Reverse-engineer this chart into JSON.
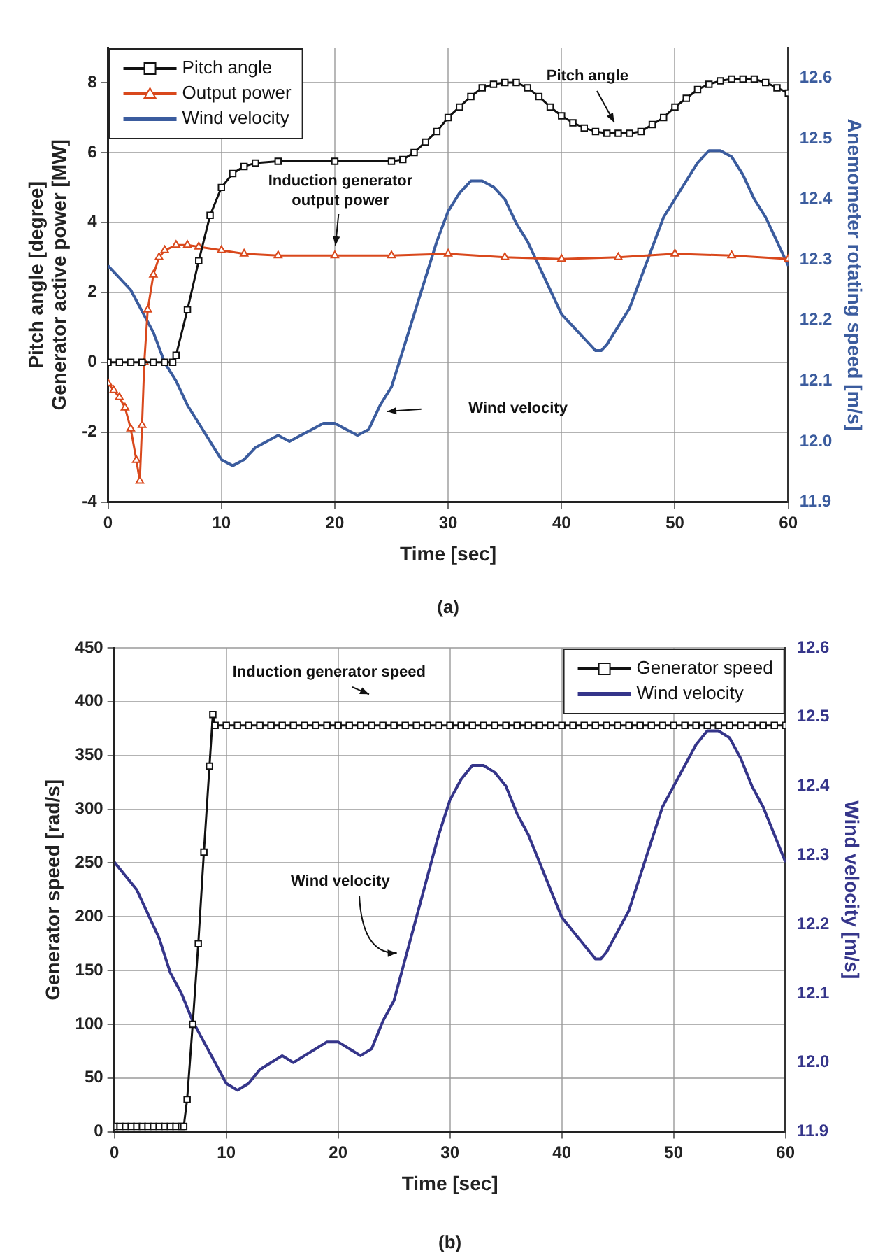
{
  "chart_data": [
    {
      "type": "line",
      "xlabel": "Time [sec]",
      "ylabel": "Pitch angle [degree]\nGenerator active power [MW]",
      "y2label": "Anemometer rotating speed [m/s]",
      "xlim": [
        0,
        60
      ],
      "xticks": [
        0,
        10,
        20,
        30,
        40,
        50,
        60
      ],
      "ylim": [
        -4,
        9
      ],
      "yticks": [
        -4,
        -2,
        0,
        2,
        4,
        6,
        8
      ],
      "y2lim": [
        11.9,
        12.65
      ],
      "y2ticks": [
        11.9,
        {
          "value": 12,
          "label": "12.0"
        },
        12.1,
        12.2,
        12.3,
        12.4,
        12.5,
        12.6
      ],
      "grid": true,
      "legend": "top left",
      "series": [
        {
          "name": "Pitch angle",
          "color": "#111111",
          "marker": "square",
          "x": [
            0,
            1,
            2,
            3,
            4,
            5,
            5.7,
            6,
            7,
            8,
            9,
            10,
            11,
            12,
            13,
            15,
            20,
            25,
            26,
            27,
            28,
            29,
            30,
            31,
            32,
            33,
            34,
            35,
            36,
            37,
            38,
            39,
            40,
            41,
            42,
            43,
            44,
            45,
            46,
            47,
            48,
            49,
            50,
            51,
            52,
            53,
            54,
            55,
            56,
            57,
            58,
            59,
            60
          ],
          "values": [
            0,
            0,
            0,
            0,
            0,
            0,
            0,
            0.2,
            1.5,
            2.9,
            4.2,
            5.0,
            5.4,
            5.6,
            5.7,
            5.75,
            5.75,
            5.75,
            5.8,
            6.0,
            6.3,
            6.6,
            7.0,
            7.3,
            7.6,
            7.85,
            7.95,
            8.0,
            8.0,
            7.85,
            7.6,
            7.3,
            7.05,
            6.85,
            6.7,
            6.6,
            6.55,
            6.55,
            6.55,
            6.6,
            6.8,
            7.0,
            7.3,
            7.55,
            7.8,
            7.95,
            8.05,
            8.1,
            8.1,
            8.1,
            8.0,
            7.85,
            7.7
          ]
        },
        {
          "name": "Output power",
          "color": "#d9481c",
          "marker": "triangle",
          "x": [
            0,
            0.5,
            1,
            1.5,
            2,
            2.5,
            2.8,
            3,
            3.2,
            3.5,
            4,
            4.5,
            5,
            6,
            7,
            8,
            10,
            12,
            15,
            20,
            25,
            30,
            35,
            40,
            45,
            50,
            55,
            60
          ],
          "values": [
            -0.6,
            -0.8,
            -1,
            -1.3,
            -1.9,
            -2.8,
            -3.4,
            -1.8,
            0,
            1.5,
            2.5,
            3.0,
            3.2,
            3.35,
            3.35,
            3.3,
            3.2,
            3.1,
            3.05,
            3.05,
            3.05,
            3.1,
            3.0,
            2.95,
            3.0,
            3.1,
            3.05,
            2.95
          ]
        },
        {
          "name": "Wind velocity",
          "color": "#3b5c9e",
          "marker": "none",
          "axis": "y2",
          "x": [
            0,
            2,
            4,
            5,
            6,
            7,
            8,
            9,
            10,
            11,
            12,
            13,
            14,
            15,
            16,
            17,
            18,
            19,
            20,
            21,
            22,
            23,
            24,
            25,
            26,
            27,
            28,
            29,
            30,
            31,
            32,
            33,
            34,
            35,
            36,
            37,
            38,
            39,
            40,
            41,
            42,
            43,
            43.5,
            44,
            45,
            46,
            47,
            48,
            49,
            50,
            51,
            52,
            53,
            54,
            55,
            56,
            57,
            58,
            59,
            60
          ],
          "values": [
            12.29,
            12.25,
            12.18,
            12.13,
            12.1,
            12.06,
            12.03,
            12.0,
            11.97,
            11.96,
            11.97,
            11.99,
            12.0,
            12.01,
            12.0,
            12.01,
            12.02,
            12.03,
            12.03,
            12.02,
            12.01,
            12.02,
            12.06,
            12.09,
            12.15,
            12.21,
            12.27,
            12.33,
            12.38,
            12.41,
            12.43,
            12.43,
            12.42,
            12.4,
            12.36,
            12.33,
            12.29,
            12.25,
            12.21,
            12.19,
            12.17,
            12.15,
            12.15,
            12.16,
            12.19,
            12.22,
            12.27,
            12.32,
            12.37,
            12.4,
            12.43,
            12.46,
            12.48,
            12.48,
            12.47,
            12.44,
            12.4,
            12.37,
            12.33,
            12.29
          ]
        }
      ],
      "annotations": [
        {
          "text": "Pitch angle",
          "x": 45,
          "y": 6.65
        },
        {
          "text": "Induction generator output power",
          "x": 20,
          "y": 3.1
        },
        "Wind velocity",
        "(a)"
      ]
    },
    {
      "type": "line",
      "xlabel": "Time [sec]",
      "ylabel": "Generator speed [rad/s]",
      "y2label": "Wind velocity [m/s]",
      "xlim": [
        0,
        60
      ],
      "xticks": [
        0,
        10,
        20,
        30,
        40,
        50,
        60
      ],
      "ylim": [
        0,
        450
      ],
      "yticks": [
        0,
        50,
        100,
        150,
        200,
        250,
        300,
        350,
        400,
        450
      ],
      "y2lim": [
        11.9,
        12.6
      ],
      "y2ticks": [
        11.9,
        {
          "value": 12,
          "label": "12.0"
        },
        12.1,
        12.2,
        12.3,
        12.4,
        12.5,
        12.6
      ],
      "grid": true,
      "legend": "top right",
      "series": [
        {
          "name": "Generator speed",
          "color": "#111111",
          "marker": "square",
          "x": [
            0,
            0.5,
            1,
            1.5,
            2,
            2.5,
            3,
            3.5,
            4,
            4.5,
            5,
            5.5,
            6,
            6.2,
            6.5,
            7,
            7.5,
            8,
            8.5,
            8.8,
            9,
            10,
            11,
            12,
            13,
            14,
            15,
            16,
            17,
            18,
            19,
            20,
            21,
            22,
            23,
            24,
            25,
            26,
            27,
            28,
            29,
            30,
            31,
            32,
            33,
            34,
            35,
            36,
            37,
            38,
            39,
            40,
            41,
            42,
            43,
            44,
            45,
            46,
            47,
            48,
            49,
            50,
            51,
            52,
            53,
            54,
            55,
            56,
            57,
            58,
            59,
            60
          ],
          "values": [
            5,
            5,
            5,
            5,
            5,
            5,
            5,
            5,
            5,
            5,
            5,
            5,
            5,
            5,
            30,
            100,
            175,
            260,
            340,
            388,
            378,
            378,
            378,
            378,
            378,
            378,
            378,
            378,
            378,
            378,
            378,
            378,
            378,
            378,
            378,
            378,
            378,
            378,
            378,
            378,
            378,
            378,
            378,
            378,
            378,
            378,
            378,
            378,
            378,
            378,
            378,
            378,
            378,
            378,
            378,
            378,
            378,
            378,
            378,
            378,
            378,
            378,
            378,
            378,
            378,
            378,
            378,
            378,
            378,
            378,
            378,
            378
          ]
        },
        {
          "name": "Wind velocity",
          "color": "#35358a",
          "marker": "none",
          "axis": "y2",
          "x": [
            0,
            2,
            4,
            5,
            6,
            7,
            8,
            9,
            10,
            11,
            12,
            13,
            14,
            15,
            16,
            17,
            18,
            19,
            20,
            21,
            22,
            23,
            24,
            25,
            26,
            27,
            28,
            29,
            30,
            31,
            32,
            33,
            34,
            35,
            36,
            37,
            38,
            39,
            40,
            41,
            42,
            43,
            43.5,
            44,
            45,
            46,
            47,
            48,
            49,
            50,
            51,
            52,
            53,
            54,
            55,
            56,
            57,
            58,
            59,
            60
          ],
          "values": [
            12.29,
            12.25,
            12.18,
            12.13,
            12.1,
            12.06,
            12.03,
            12.0,
            11.97,
            11.96,
            11.97,
            11.99,
            12.0,
            12.01,
            12.0,
            12.01,
            12.02,
            12.03,
            12.03,
            12.02,
            12.01,
            12.02,
            12.06,
            12.09,
            12.15,
            12.21,
            12.27,
            12.33,
            12.38,
            12.41,
            12.43,
            12.43,
            12.42,
            12.4,
            12.36,
            12.33,
            12.29,
            12.25,
            12.21,
            12.19,
            12.17,
            12.15,
            12.15,
            12.16,
            12.19,
            12.22,
            12.27,
            12.32,
            12.37,
            12.4,
            12.43,
            12.46,
            12.48,
            12.48,
            12.47,
            12.44,
            12.4,
            12.37,
            12.33,
            12.29
          ]
        }
      ],
      "annotations": [
        "Induction generator speed",
        {
          "text": "Wind velocity",
          "x": 25.7,
          "y": 165
        },
        "(b)"
      ]
    }
  ]
}
